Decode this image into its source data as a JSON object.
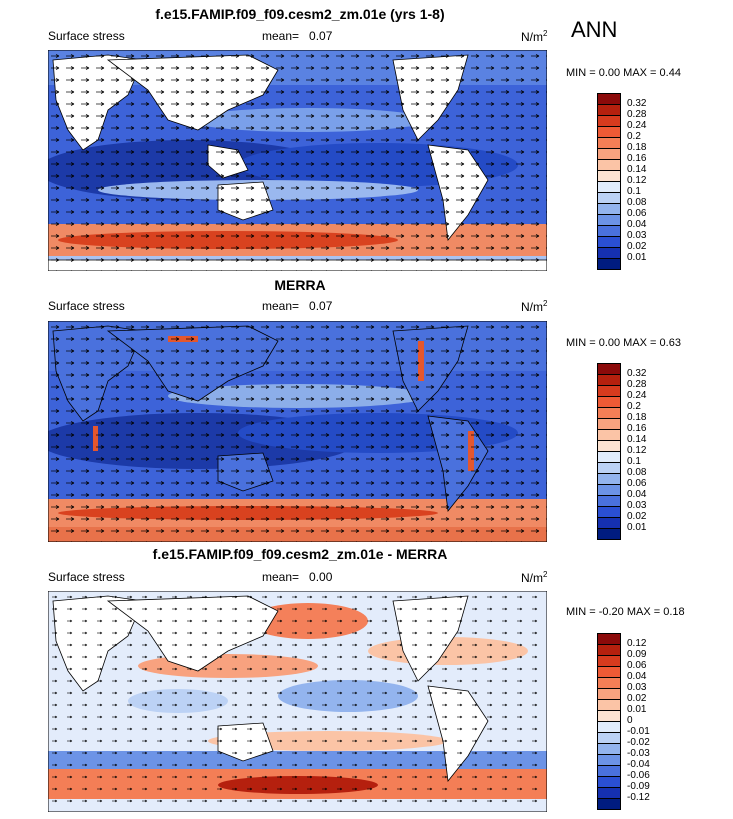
{
  "season": "ANN",
  "panels": [
    {
      "title": "f.e15.FAMIP.f09_f09.cesm2_zm.01e (yrs 1-8)",
      "left_label": "Surface stress",
      "mean_label": "mean=",
      "mean_value": "0.07",
      "units": "N/m",
      "units_sup": "2",
      "min_max": "MIN =   0.00 MAX =   0.44",
      "colorbar": {
        "labels": [
          "0.32",
          "0.28",
          "0.24",
          "0.2",
          "0.18",
          "0.16",
          "0.14",
          "0.12",
          "0.1",
          "0.08",
          "0.06",
          "0.04",
          "0.03",
          "0.02",
          "0.01"
        ],
        "colors": [
          "#8b0a0a",
          "#b5200e",
          "#d63b1e",
          "#ee5a35",
          "#f47e56",
          "#f8a27f",
          "#fbc4a6",
          "#fde3d1",
          "#e1ecfb",
          "#bcd2f5",
          "#93b4ee",
          "#6c93e6",
          "#4a71dd",
          "#2a4fd3",
          "#1530b0",
          "#001c80"
        ]
      }
    },
    {
      "title": "MERRA",
      "left_label": "Surface stress",
      "mean_label": "mean=",
      "mean_value": "0.07",
      "units": "N/m",
      "units_sup": "2",
      "min_max": "MIN =   0.00 MAX =   0.63",
      "colorbar": {
        "labels": [
          "0.32",
          "0.28",
          "0.24",
          "0.2",
          "0.18",
          "0.16",
          "0.14",
          "0.12",
          "0.1",
          "0.08",
          "0.06",
          "0.04",
          "0.03",
          "0.02",
          "0.01"
        ],
        "colors": [
          "#8b0a0a",
          "#b5200e",
          "#d63b1e",
          "#ee5a35",
          "#f47e56",
          "#f8a27f",
          "#fbc4a6",
          "#fde3d1",
          "#e1ecfb",
          "#bcd2f5",
          "#93b4ee",
          "#6c93e6",
          "#4a71dd",
          "#2a4fd3",
          "#1530b0",
          "#001c80"
        ]
      }
    },
    {
      "title": "f.e15.FAMIP.f09_f09.cesm2_zm.01e - MERRA",
      "left_label": "Surface stress",
      "mean_label": "mean=",
      "mean_value": "0.00",
      "units": "N/m",
      "units_sup": "2",
      "min_max": "MIN =  -0.20 MAX =   0.18",
      "colorbar": {
        "labels": [
          "0.12",
          "0.09",
          "0.06",
          "0.04",
          "0.03",
          "0.02",
          "0.01",
          "0",
          "-0.01",
          "-0.02",
          "-0.03",
          "-0.04",
          "-0.06",
          "-0.09",
          "-0.12"
        ],
        "colors": [
          "#8b0a0a",
          "#b5200e",
          "#d63b1e",
          "#ee5a35",
          "#f47e56",
          "#f8a27f",
          "#fbc4a6",
          "#fde3d1",
          "#e1ecfb",
          "#bcd2f5",
          "#93b4ee",
          "#6c93e6",
          "#4a71dd",
          "#2a4fd3",
          "#1530b0",
          "#001c80"
        ]
      }
    }
  ],
  "chart_data": [
    {
      "type": "heatmap",
      "title": "f.e15.FAMIP.f09_f09.cesm2_zm.01e (yrs 1-8)",
      "variable": "Surface stress",
      "units": "N/m2",
      "mean": 0.07,
      "min": 0.0,
      "max": 0.44,
      "contour_levels": [
        0.01,
        0.02,
        0.03,
        0.04,
        0.06,
        0.08,
        0.1,
        0.12,
        0.14,
        0.16,
        0.18,
        0.2,
        0.24,
        0.28,
        0.32
      ],
      "overlay": "wind-stress vectors",
      "season": "ANN"
    },
    {
      "type": "heatmap",
      "title": "MERRA",
      "variable": "Surface stress",
      "units": "N/m2",
      "mean": 0.07,
      "min": 0.0,
      "max": 0.63,
      "contour_levels": [
        0.01,
        0.02,
        0.03,
        0.04,
        0.06,
        0.08,
        0.1,
        0.12,
        0.14,
        0.16,
        0.18,
        0.2,
        0.24,
        0.28,
        0.32
      ],
      "overlay": "wind-stress vectors",
      "season": "ANN"
    },
    {
      "type": "heatmap",
      "title": "f.e15.FAMIP.f09_f09.cesm2_zm.01e - MERRA",
      "variable": "Surface stress",
      "units": "N/m2",
      "mean": 0.0,
      "min": -0.2,
      "max": 0.18,
      "contour_levels": [
        -0.12,
        -0.09,
        -0.06,
        -0.04,
        -0.03,
        -0.02,
        -0.01,
        0,
        0.01,
        0.02,
        0.03,
        0.04,
        0.06,
        0.09,
        0.12
      ],
      "overlay": "wind-stress difference vectors",
      "season": "ANN"
    }
  ]
}
